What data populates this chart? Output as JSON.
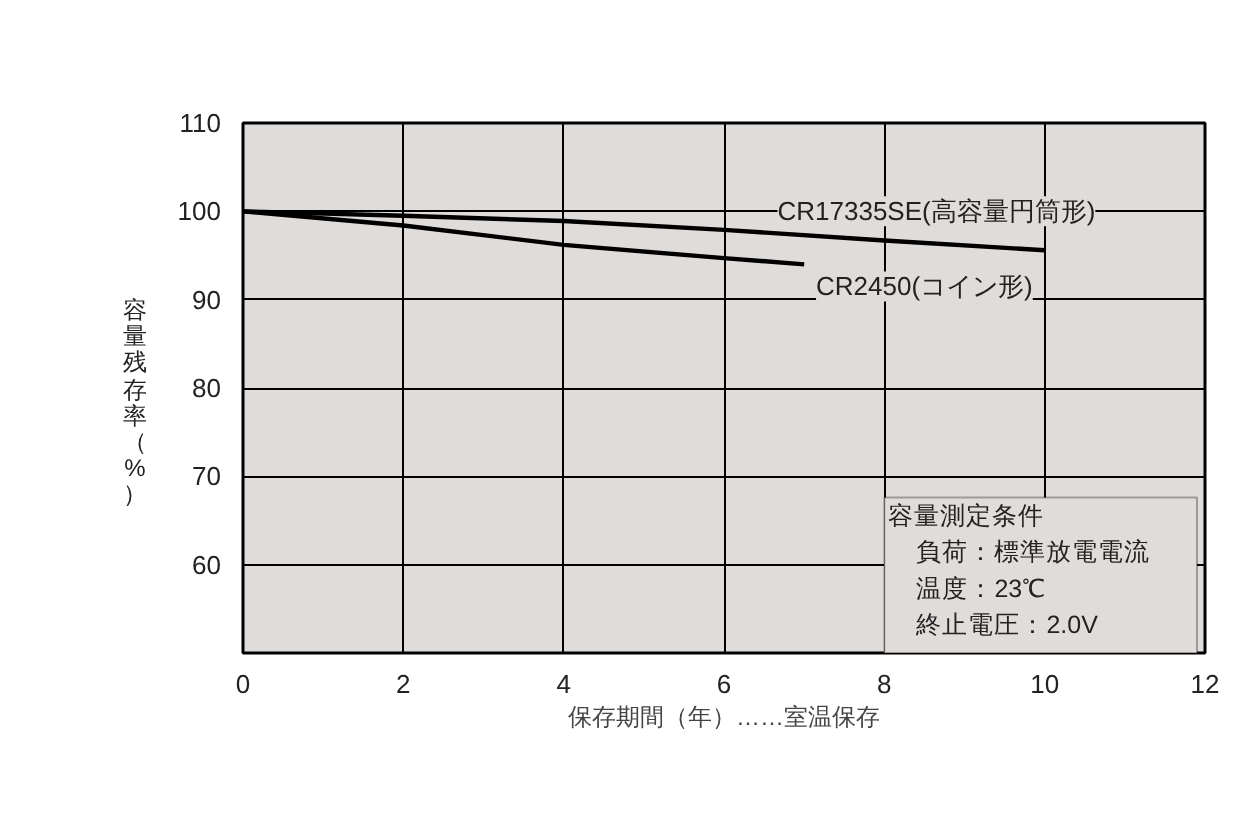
{
  "chart_data": {
    "type": "line",
    "xlabel": "保存期間（年）……室温保存",
    "ylabel": "容量残存率（%）",
    "xlim": [
      0,
      12
    ],
    "ylim": [
      50,
      110
    ],
    "xticks": [
      0,
      2,
      4,
      6,
      8,
      10,
      12
    ],
    "yticks": [
      60,
      70,
      80,
      90,
      100,
      110
    ],
    "grid": true,
    "series": [
      {
        "name": "CR17335SE(高容量円筒形)",
        "color": "#000000",
        "x": [
          0,
          2,
          4,
          6,
          8,
          10
        ],
        "values": [
          100,
          99.5,
          98.9,
          97.9,
          96.7,
          95.6
        ]
      },
      {
        "name": "CR2450(コイン形)",
        "color": "#000000",
        "x": [
          0,
          2,
          4,
          6,
          7
        ],
        "values": [
          100,
          98.4,
          96.2,
          94.7,
          94.0
        ]
      }
    ],
    "annotations": [
      "容量測定条件",
      "負荷：標準放電電流",
      "温度：23℃",
      "終止電圧：2.0V"
    ]
  }
}
